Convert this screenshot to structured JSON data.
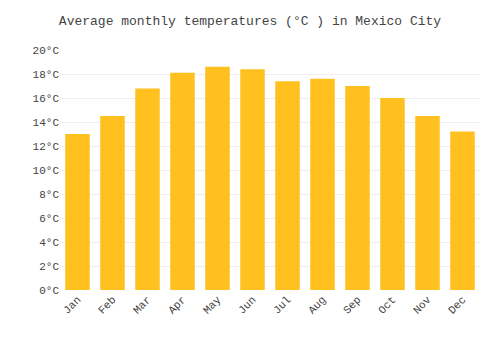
{
  "chart_data": {
    "type": "bar",
    "title": "Average monthly temperatures (°C ) in Mexico City",
    "categories": [
      "Jan",
      "Feb",
      "Mar",
      "Apr",
      "May",
      "Jun",
      "Jul",
      "Aug",
      "Sep",
      "Oct",
      "Nov",
      "Dec"
    ],
    "values": [
      13.0,
      14.5,
      16.8,
      18.1,
      18.6,
      18.4,
      17.4,
      17.6,
      17.0,
      16.0,
      14.5,
      13.2
    ],
    "color": "#FFC020",
    "ylim": [
      0,
      20
    ],
    "yticks": [
      {
        "value": 0,
        "label": "0°C"
      },
      {
        "value": 2,
        "label": "2°C"
      },
      {
        "value": 4,
        "label": "4°C"
      },
      {
        "value": 6,
        "label": "6°C"
      },
      {
        "value": 8,
        "label": "8°C"
      },
      {
        "value": 10,
        "label": "10°C"
      },
      {
        "value": 12,
        "label": "12°C"
      },
      {
        "value": 14,
        "label": "14°C"
      },
      {
        "value": 16,
        "label": "16°C"
      },
      {
        "value": 18,
        "label": "18°C"
      },
      {
        "value": 20,
        "label": "20°C"
      }
    ],
    "grid": true
  }
}
